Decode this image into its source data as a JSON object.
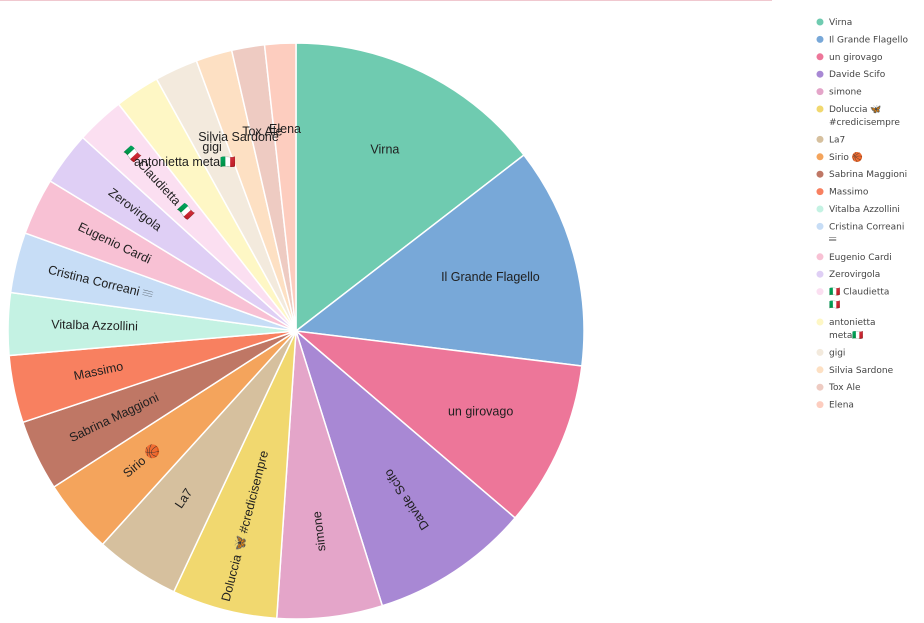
{
  "chart_data": {
    "type": "pie",
    "title": "",
    "legend_position": "right",
    "slices": [
      {
        "label": "Virna",
        "value": 15.0,
        "color": "#6fcbb0"
      },
      {
        "label": "Il Grande Flagello",
        "value": 12.8,
        "color": "#78a8d8"
      },
      {
        "label": "un girovago",
        "value": 9.6,
        "color": "#ed7699"
      },
      {
        "label": "Davide Scifo",
        "value": 9.2,
        "color": "#a888d4"
      },
      {
        "label": "simone",
        "value": 6.1,
        "color": "#e4a5c9"
      },
      {
        "label": "Doluccia 🦋 #credicisempre",
        "value": 6.1,
        "color": "#f1d86f"
      },
      {
        "label": "La7",
        "value": 4.9,
        "color": "#d6c09e"
      },
      {
        "label": "Sirio 🏀",
        "value": 4.3,
        "color": "#f4a45c"
      },
      {
        "label": "Sabrina Maggioni",
        "value": 4.1,
        "color": "#bf7765"
      },
      {
        "label": "Massimo",
        "value": 3.9,
        "color": "#f88060"
      },
      {
        "label": "Vitalba Azzollini",
        "value": 3.6,
        "color": "#c4f2e3"
      },
      {
        "label": "Cristina Correani 𝄘",
        "value": 3.5,
        "color": "#c7ddf6"
      },
      {
        "label": "Eugenio Cardi",
        "value": 3.3,
        "color": "#f8c1d4"
      },
      {
        "label": "Zerovirgola",
        "value": 3.1,
        "color": "#dfcff5"
      },
      {
        "label": "🇮🇹 Claudietta 🇮🇹",
        "value": 2.8,
        "color": "#fbdff1"
      },
      {
        "label": "antonietta meta🇮🇹",
        "value": 2.6,
        "color": "#fef7c5"
      },
      {
        "label": "gigi",
        "value": 2.5,
        "color": "#f3eadd"
      },
      {
        "label": "Silvia Sardone",
        "value": 2.1,
        "color": "#fde0c3"
      },
      {
        "label": "Tox Ale",
        "value": 1.9,
        "color": "#eecbc2"
      },
      {
        "label": "Elena",
        "value": 1.8,
        "color": "#fdcdbf"
      }
    ]
  }
}
